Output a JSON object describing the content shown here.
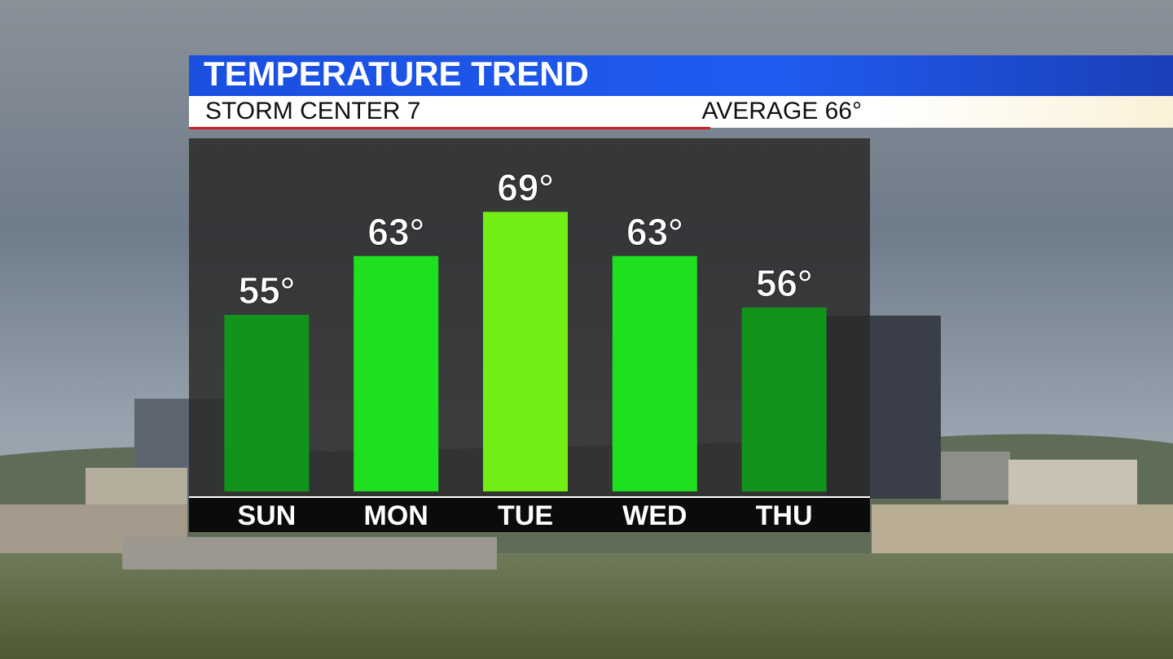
{
  "chart_data": {
    "type": "bar",
    "title": "TEMPERATURE TREND",
    "subtitle": "STORM CENTER 7",
    "annotation": "AVERAGE 66°",
    "categories": [
      "SUN",
      "MON",
      "TUE",
      "WED",
      "THU"
    ],
    "values": [
      55,
      63,
      69,
      63,
      56
    ],
    "value_labels": [
      "55°",
      "63°",
      "69°",
      "63°",
      "56°"
    ],
    "colors": [
      "#12931b",
      "#1fe01f",
      "#72ee14",
      "#1fe01f",
      "#12931b"
    ],
    "ylim": [
      31,
      79
    ]
  }
}
